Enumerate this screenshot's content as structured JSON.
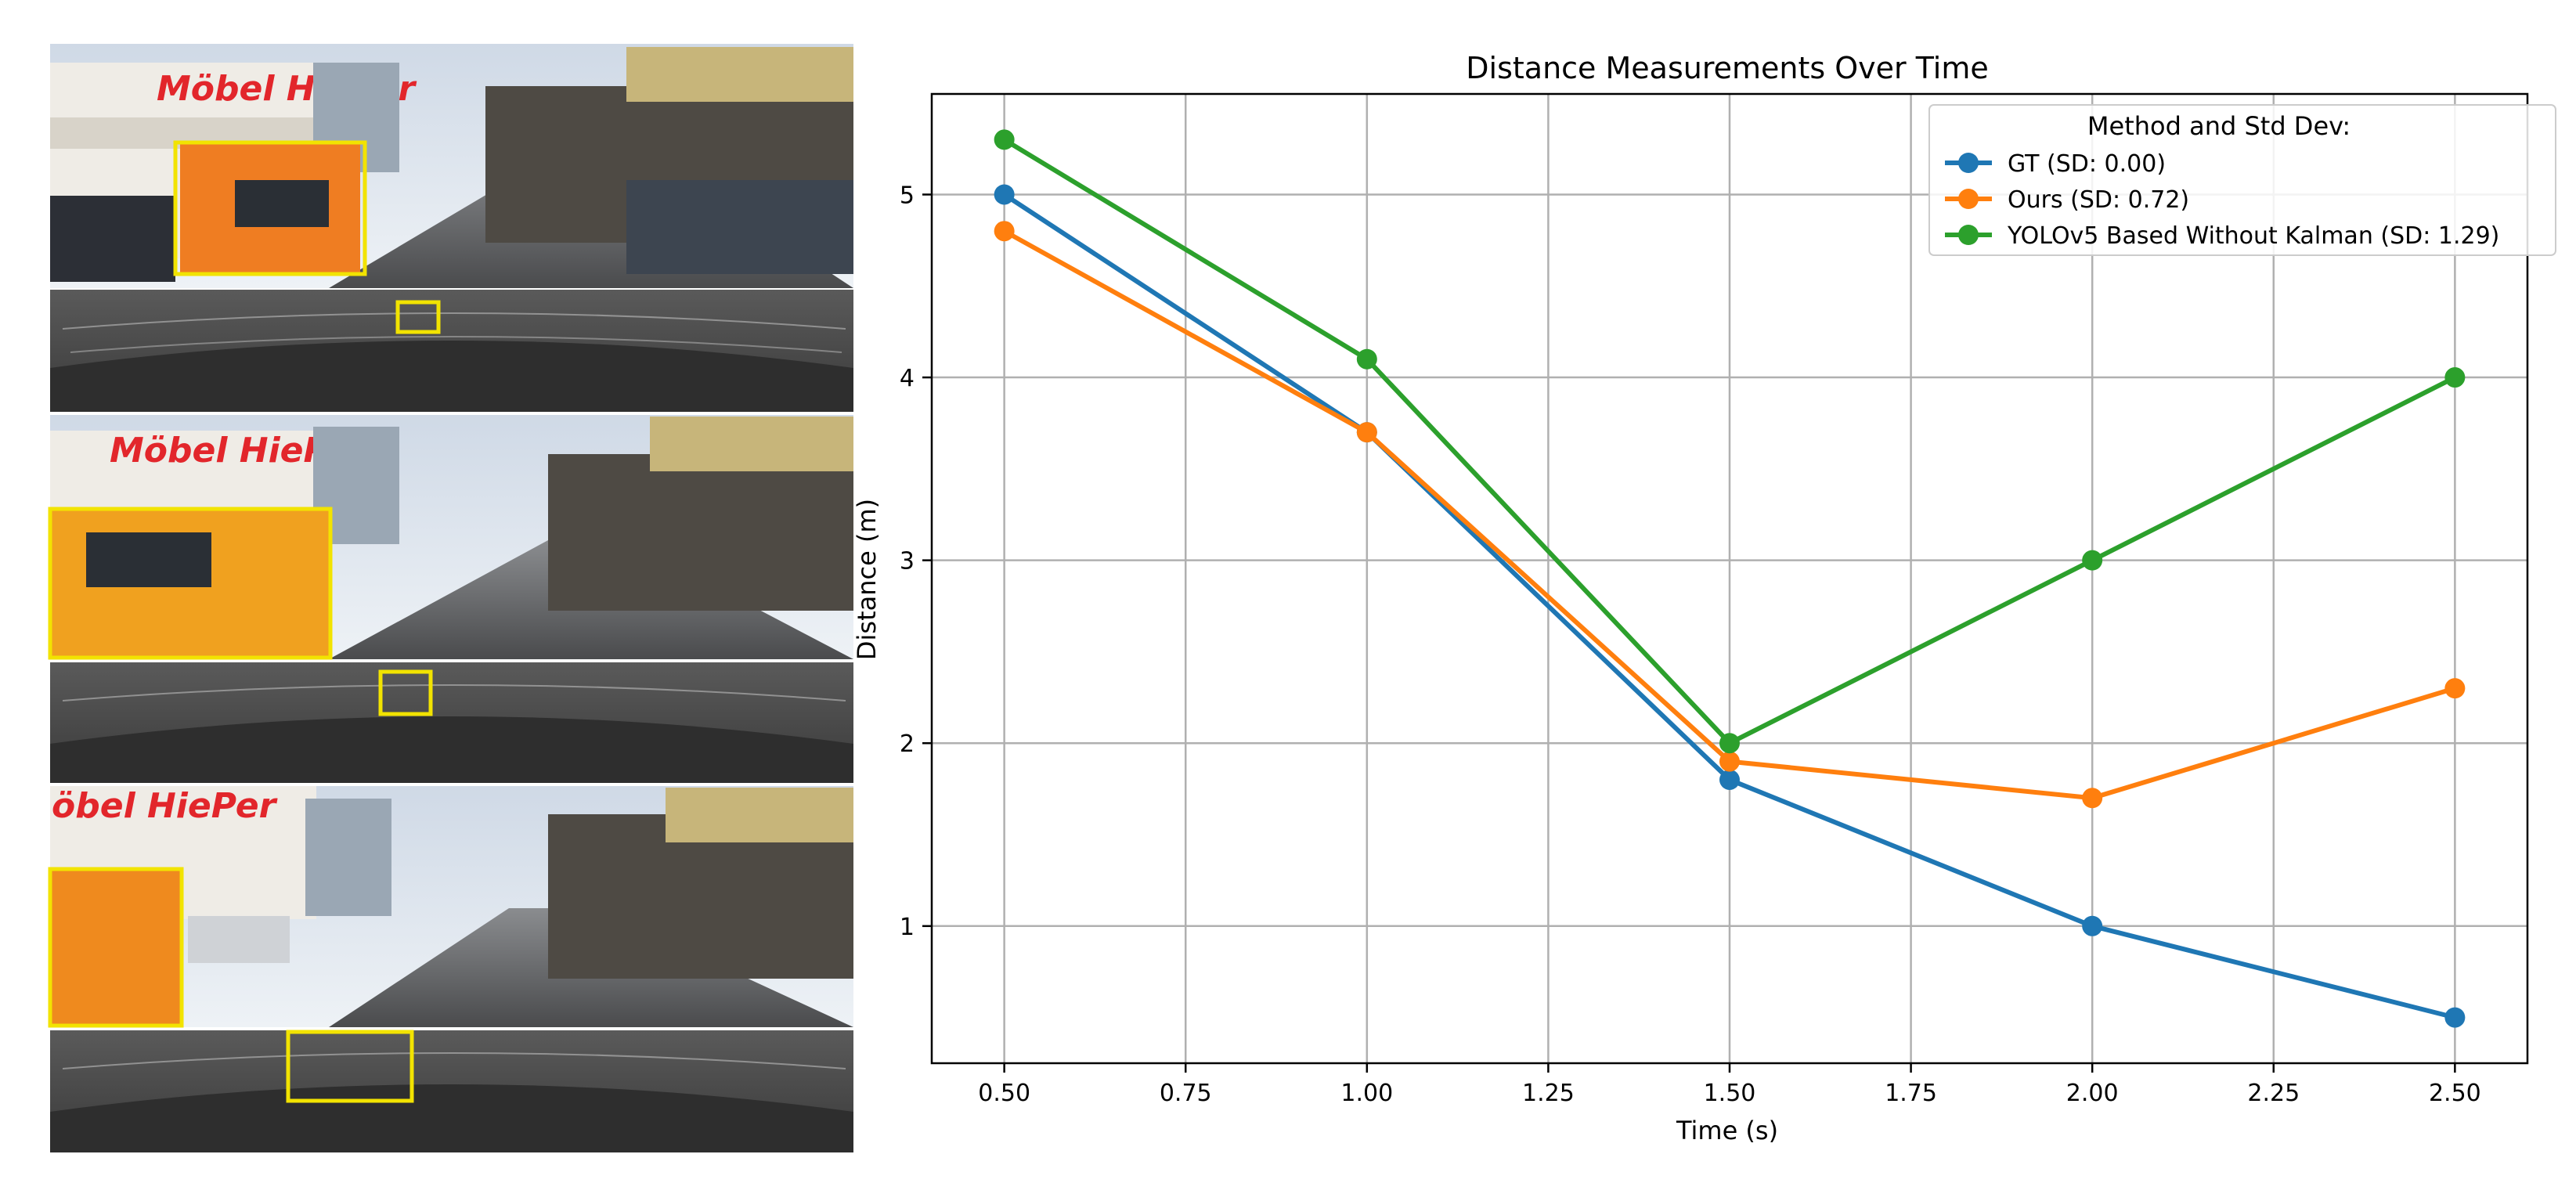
{
  "figure_panel": {
    "sign_text_1": "Möbel HiePer",
    "sign_text_2": "Möbel HiePer",
    "sign_text_3": "öbel HiePer"
  },
  "chart_data": {
    "type": "line",
    "title": "Distance Measurements Over Time",
    "xlabel": "Time (s)",
    "ylabel": "Distance (m)",
    "x": [
      0.5,
      1.0,
      1.5,
      2.0,
      2.5
    ],
    "xlim": [
      0.4,
      2.6
    ],
    "ylim": [
      0.25,
      5.55
    ],
    "xticks": [
      0.5,
      0.75,
      1.0,
      1.25,
      1.5,
      1.75,
      2.0,
      2.25,
      2.5
    ],
    "xtick_labels": [
      "0.50",
      "0.75",
      "1.00",
      "1.25",
      "1.50",
      "1.75",
      "2.00",
      "2.25",
      "2.50"
    ],
    "yticks": [
      1,
      2,
      3,
      4,
      5
    ],
    "ytick_labels": [
      "1",
      "2",
      "3",
      "4",
      "5"
    ],
    "grid": true,
    "legend": {
      "title": "Method and Std Dev:",
      "position": "upper-right"
    },
    "series": [
      {
        "name": "GT (SD: 0.00)",
        "color": "#1f77b4",
        "values": [
          5.0,
          3.7,
          1.8,
          1.0,
          0.5
        ]
      },
      {
        "name": "Ours (SD: 0.72)",
        "color": "#ff7f0e",
        "values": [
          4.8,
          3.7,
          1.9,
          1.7,
          2.3
        ]
      },
      {
        "name": "YOLOv5 Based Without Kalman (SD: 1.29)",
        "color": "#2ca02c",
        "values": [
          5.3,
          4.1,
          2.0,
          3.0,
          4.0
        ]
      }
    ]
  }
}
